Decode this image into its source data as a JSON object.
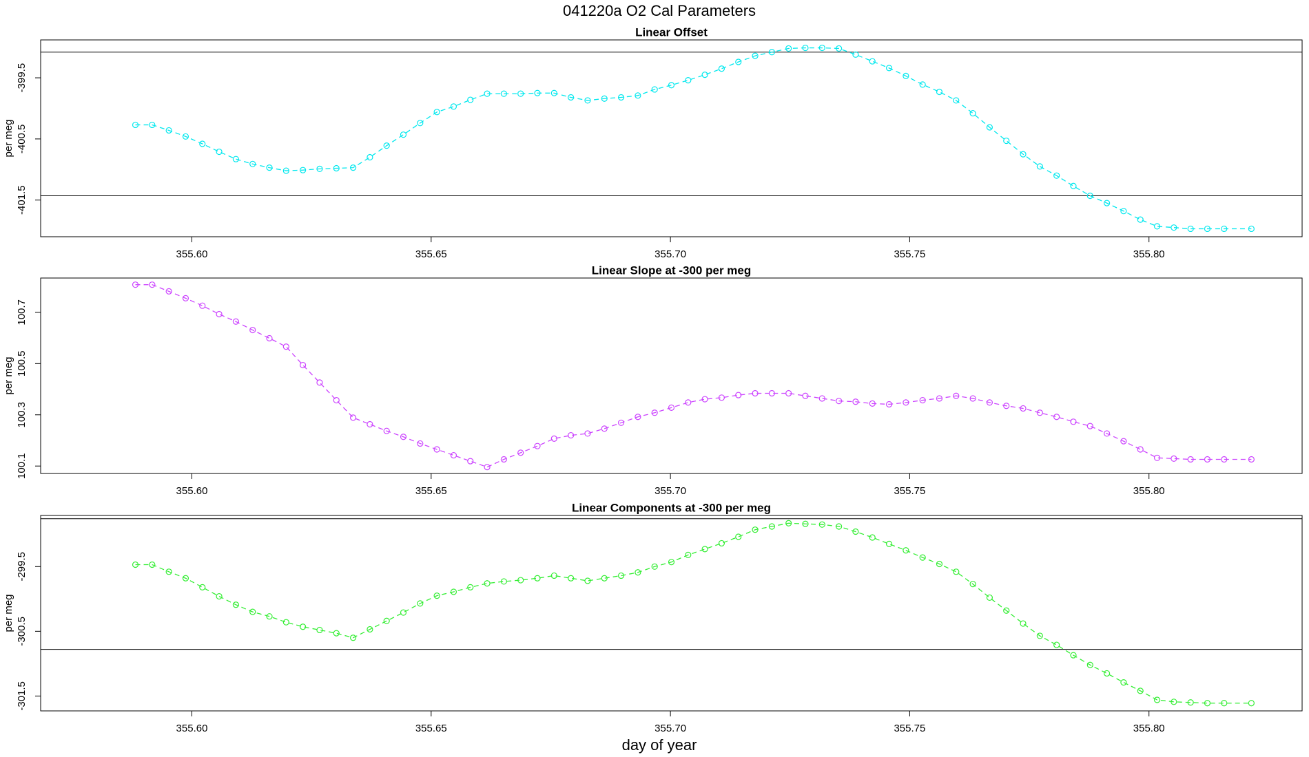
{
  "title": "041220a   O2 Cal Parameters",
  "xlabel": "day of year",
  "chart_data": [
    {
      "type": "line",
      "title": "Linear Offset",
      "ylabel": "per meg",
      "color": "#00e8ee",
      "x": [
        355.5882,
        355.5917,
        355.5952,
        355.5987,
        355.6022,
        355.6057,
        355.6092,
        355.6127,
        355.6162,
        355.6197,
        355.6232,
        355.6267,
        355.6302,
        355.6337,
        355.6372,
        355.6407,
        355.6442,
        355.6477,
        355.6512,
        355.6547,
        355.6582,
        355.6617,
        355.6652,
        355.6687,
        355.6722,
        355.6757,
        355.6792,
        355.6827,
        355.6862,
        355.6897,
        355.6932,
        355.6967,
        355.7002,
        355.7037,
        355.7072,
        355.7107,
        355.7142,
        355.7177,
        355.7212,
        355.7247,
        355.7282,
        355.7317,
        355.7352,
        355.7387,
        355.7422,
        355.7457,
        355.7492,
        355.7527,
        355.7562,
        355.7597,
        355.7632,
        355.7667,
        355.7702,
        355.7737,
        355.7772,
        355.7807,
        355.7842,
        355.7877,
        355.7912,
        355.7947,
        355.7982,
        355.8017,
        355.8052,
        355.8087,
        355.8122,
        355.8157,
        355.8214
      ],
      "values": [
        -400.27,
        -400.27,
        -400.36,
        -400.46,
        -400.58,
        -400.71,
        -400.83,
        -400.91,
        -400.97,
        -401.02,
        -401.01,
        -400.99,
        -400.98,
        -400.97,
        -400.8,
        -400.61,
        -400.43,
        -400.24,
        -400.06,
        -399.97,
        -399.86,
        -399.76,
        -399.76,
        -399.76,
        -399.75,
        -399.75,
        -399.82,
        -399.87,
        -399.84,
        -399.82,
        -399.79,
        -399.69,
        -399.62,
        -399.54,
        -399.45,
        -399.35,
        -399.24,
        -399.14,
        -399.08,
        -399.02,
        -399.01,
        -399.01,
        -399.02,
        -399.12,
        -399.23,
        -399.34,
        -399.47,
        -399.61,
        -399.73,
        -399.87,
        -400.08,
        -400.31,
        -400.53,
        -400.75,
        -400.95,
        -401.1,
        -401.27,
        -401.43,
        -401.55,
        -401.68,
        -401.82,
        -401.93,
        -401.95,
        -401.97,
        -401.97,
        -401.97,
        -401.97
      ],
      "hlines": [
        -399.08,
        -401.43
      ],
      "xlim": [
        355.5684,
        355.832
      ],
      "ylim": [
        -402.1,
        -398.88
      ],
      "xticks": [
        {
          "value": 355.6,
          "label": "355.60"
        },
        {
          "value": 355.65,
          "label": "355.65"
        },
        {
          "value": 355.7,
          "label": "355.70"
        },
        {
          "value": 355.75,
          "label": "355.75"
        },
        {
          "value": 355.8,
          "label": "355.80"
        }
      ],
      "yticks": [
        -399.5,
        -400.5,
        -401.5
      ]
    },
    {
      "type": "line",
      "title": "Linear Slope at -300 per meg",
      "ylabel": "per meg",
      "color": "#cc44ff",
      "x": [
        355.5882,
        355.5917,
        355.5952,
        355.5987,
        355.6022,
        355.6057,
        355.6092,
        355.6127,
        355.6162,
        355.6197,
        355.6232,
        355.6267,
        355.6302,
        355.6337,
        355.6372,
        355.6407,
        355.6442,
        355.6477,
        355.6512,
        355.6547,
        355.6582,
        355.6617,
        355.6652,
        355.6687,
        355.6722,
        355.6757,
        355.6792,
        355.6827,
        355.6862,
        355.6897,
        355.6932,
        355.6967,
        355.7002,
        355.7037,
        355.7072,
        355.7107,
        355.7142,
        355.7177,
        355.7212,
        355.7247,
        355.7282,
        355.7317,
        355.7352,
        355.7387,
        355.7422,
        355.7457,
        355.7492,
        355.7527,
        355.7562,
        355.7597,
        355.7632,
        355.7667,
        355.7702,
        355.7737,
        355.7772,
        355.7807,
        355.7842,
        355.7877,
        355.7912,
        355.7947,
        355.7982,
        355.8017,
        355.8052,
        355.8087,
        355.8122,
        355.8157,
        355.8214
      ],
      "values": [
        100.808,
        100.808,
        100.782,
        100.755,
        100.726,
        100.693,
        100.664,
        100.631,
        100.599,
        100.566,
        100.494,
        100.426,
        100.357,
        100.289,
        100.263,
        100.237,
        100.214,
        100.188,
        100.165,
        100.142,
        100.119,
        100.096,
        100.126,
        100.152,
        100.178,
        100.207,
        100.22,
        100.227,
        100.246,
        100.269,
        100.292,
        100.308,
        100.328,
        100.348,
        100.361,
        100.367,
        100.377,
        100.384,
        100.384,
        100.384,
        100.374,
        100.364,
        100.354,
        100.351,
        100.344,
        100.341,
        100.348,
        100.357,
        100.364,
        100.374,
        100.364,
        100.348,
        100.335,
        100.325,
        100.308,
        100.292,
        100.273,
        100.256,
        100.227,
        100.197,
        100.165,
        100.132,
        100.129,
        100.126,
        100.126,
        100.126,
        100.126
      ],
      "hlines": [],
      "xlim": [
        355.5684,
        355.832
      ],
      "ylim": [
        100.071,
        100.834
      ],
      "xticks": [
        {
          "value": 355.6,
          "label": "355.60"
        },
        {
          "value": 355.65,
          "label": "355.65"
        },
        {
          "value": 355.7,
          "label": "355.70"
        },
        {
          "value": 355.75,
          "label": "355.75"
        },
        {
          "value": 355.8,
          "label": "355.80"
        }
      ],
      "yticks": [
        100.7,
        100.5,
        100.3,
        100.1
      ]
    },
    {
      "type": "line",
      "title": "Linear Components at -300 per meg",
      "ylabel": "per meg",
      "color": "#33ee33",
      "x": [
        355.5882,
        355.5917,
        355.5952,
        355.5987,
        355.6022,
        355.6057,
        355.6092,
        355.6127,
        355.6162,
        355.6197,
        355.6232,
        355.6267,
        355.6302,
        355.6337,
        355.6372,
        355.6407,
        355.6442,
        355.6477,
        355.6512,
        355.6547,
        355.6582,
        355.6617,
        355.6652,
        355.6687,
        355.6722,
        355.6757,
        355.6792,
        355.6827,
        355.6862,
        355.6897,
        355.6932,
        355.6967,
        355.7002,
        355.7037,
        355.7072,
        355.7107,
        355.7142,
        355.7177,
        355.7212,
        355.7247,
        355.7282,
        355.7317,
        355.7352,
        355.7387,
        355.7422,
        355.7457,
        355.7492,
        355.7527,
        355.7562,
        355.7597,
        355.7632,
        355.7667,
        355.7702,
        355.7737,
        355.7772,
        355.7807,
        355.7842,
        355.7877,
        355.7912,
        355.7947,
        355.7982,
        355.8017,
        355.8052,
        355.8087,
        355.8122,
        355.8157,
        355.8214
      ],
      "values": [
        -299.47,
        -299.47,
        -299.58,
        -299.68,
        -299.82,
        -299.96,
        -300.09,
        -300.2,
        -300.27,
        -300.36,
        -300.43,
        -300.48,
        -300.53,
        -300.6,
        -300.47,
        -300.34,
        -300.21,
        -300.07,
        -299.95,
        -299.89,
        -299.82,
        -299.76,
        -299.73,
        -299.71,
        -299.68,
        -299.64,
        -299.68,
        -299.72,
        -299.68,
        -299.64,
        -299.59,
        -299.5,
        -299.43,
        -299.32,
        -299.23,
        -299.14,
        -299.04,
        -298.93,
        -298.88,
        -298.83,
        -298.84,
        -298.85,
        -298.88,
        -298.96,
        -299.05,
        -299.15,
        -299.25,
        -299.36,
        -299.46,
        -299.58,
        -299.77,
        -299.98,
        -300.18,
        -300.38,
        -300.57,
        -300.71,
        -300.87,
        -301.02,
        -301.15,
        -301.29,
        -301.42,
        -301.56,
        -301.59,
        -301.6,
        -301.61,
        -301.61,
        -301.61
      ],
      "hlines": [
        -298.76,
        -300.78
      ],
      "xlim": [
        355.5684,
        355.832
      ],
      "ylim": [
        -301.73,
        -298.71
      ],
      "xticks": [
        {
          "value": 355.6,
          "label": "355.60"
        },
        {
          "value": 355.65,
          "label": "355.65"
        },
        {
          "value": 355.7,
          "label": "355.70"
        },
        {
          "value": 355.75,
          "label": "355.75"
        },
        {
          "value": 355.8,
          "label": "355.80"
        }
      ],
      "yticks": [
        -299.5,
        -300.5,
        -301.5
      ]
    }
  ]
}
